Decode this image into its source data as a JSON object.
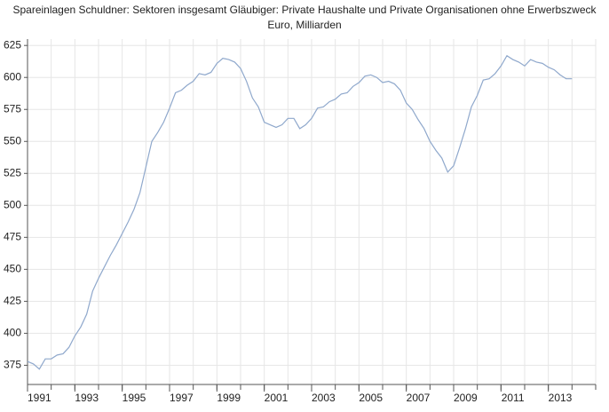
{
  "chart_data": {
    "type": "line",
    "title": "Spareinlagen Schuldner: Sektoren insgesamt Gläubiger: Private Haushalte und Private Organisationen ohne Erwerbszweck",
    "subtitle": "Euro, Milliarden",
    "x": [
      1991,
      1991.25,
      1991.5,
      1991.75,
      1992,
      1992.25,
      1992.5,
      1992.75,
      1993,
      1993.25,
      1993.5,
      1993.75,
      1994,
      1994.25,
      1994.5,
      1994.75,
      1995,
      1995.25,
      1995.5,
      1995.75,
      1996,
      1996.25,
      1996.5,
      1996.75,
      1997,
      1997.25,
      1997.5,
      1997.75,
      1998,
      1998.25,
      1998.5,
      1998.75,
      1999,
      1999.25,
      1999.5,
      1999.75,
      2000,
      2000.25,
      2000.5,
      2000.75,
      2001,
      2001.25,
      2001.5,
      2001.75,
      2002,
      2002.25,
      2002.5,
      2002.75,
      2003,
      2003.25,
      2003.5,
      2003.75,
      2004,
      2004.25,
      2004.5,
      2004.75,
      2005,
      2005.25,
      2005.5,
      2005.75,
      2006,
      2006.25,
      2006.5,
      2006.75,
      2007,
      2007.25,
      2007.5,
      2007.75,
      2008,
      2008.25,
      2008.5,
      2008.75,
      2009,
      2009.25,
      2009.5,
      2009.75,
      2010,
      2010.25,
      2010.5,
      2010.75,
      2011,
      2011.25,
      2011.5,
      2011.75,
      2012,
      2012.25,
      2012.5,
      2012.75,
      2013,
      2013.25,
      2013.5,
      2013.75,
      2014
    ],
    "series": [
      {
        "name": "Spareinlagen",
        "color": "#8fa8cc",
        "values": [
          378,
          376,
          372,
          380,
          380,
          383,
          384,
          389,
          398,
          405,
          415,
          433,
          443,
          452,
          461,
          469,
          478,
          487,
          497,
          510,
          530,
          550,
          557,
          565,
          576,
          588,
          590,
          594,
          597,
          603,
          602,
          604,
          611,
          615,
          614,
          612,
          607,
          597,
          584,
          577,
          565,
          563,
          561,
          563,
          568,
          568,
          560,
          563,
          568,
          576,
          577,
          581,
          583,
          587,
          588,
          593,
          596,
          601,
          602,
          600,
          596,
          597,
          595,
          590,
          580,
          575,
          567,
          560,
          550,
          543,
          537,
          526,
          531,
          545,
          560,
          577,
          586,
          598,
          599,
          603,
          609,
          617,
          614,
          612,
          609,
          614,
          612,
          611,
          608,
          606,
          602,
          599,
          599
        ]
      }
    ],
    "xlim": [
      1991,
      2015
    ],
    "xticks": [
      1991,
      1993,
      1995,
      1997,
      1999,
      2001,
      2003,
      2005,
      2007,
      2009,
      2011,
      2013
    ],
    "ylim": [
      360,
      630
    ],
    "yticks": [
      375,
      400,
      425,
      450,
      475,
      500,
      525,
      550,
      575,
      600,
      625
    ],
    "grid": true
  }
}
